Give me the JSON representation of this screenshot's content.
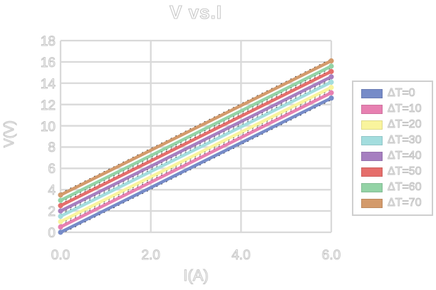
{
  "chart_data": {
    "type": "line",
    "title": "V vs.I",
    "xlabel": "I(A)",
    "ylabel": "V(V)",
    "xlim": [
      0,
      6
    ],
    "ylim": [
      0,
      18
    ],
    "x": [
      0,
      6
    ],
    "grid": true,
    "gridline_color": "#d9d9d9",
    "legend_position": "right",
    "xticks": [
      {
        "value": 0,
        "label": "0.0"
      },
      {
        "value": 2,
        "label": "2.0"
      },
      {
        "value": 4,
        "label": "4.0"
      },
      {
        "value": 6,
        "label": "6.0"
      }
    ],
    "yticks": [
      {
        "value": 0,
        "label": "0"
      },
      {
        "value": 2,
        "label": "2"
      },
      {
        "value": 4,
        "label": "4"
      },
      {
        "value": 6,
        "label": "6"
      },
      {
        "value": 8,
        "label": "8"
      },
      {
        "value": 10,
        "label": "10"
      },
      {
        "value": 12,
        "label": "12"
      },
      {
        "value": 14,
        "label": "14"
      },
      {
        "value": 16,
        "label": "16"
      },
      {
        "value": 18,
        "label": "18"
      }
    ],
    "series": [
      {
        "name": "ΔT=0",
        "color": "#768BC8",
        "values": [
          0.0,
          12.6
        ]
      },
      {
        "name": "ΔT=10",
        "color": "#E780B1",
        "values": [
          0.5,
          13.1
        ]
      },
      {
        "name": "ΔT=20",
        "color": "#F9F49D",
        "values": [
          1.0,
          13.6
        ]
      },
      {
        "name": "ΔT=30",
        "color": "#A3DDDE",
        "values": [
          1.5,
          14.1
        ]
      },
      {
        "name": "ΔT=40",
        "color": "#A67FC0",
        "values": [
          2.0,
          14.6
        ]
      },
      {
        "name": "ΔT=50",
        "color": "#E56E6B",
        "values": [
          2.5,
          15.1
        ]
      },
      {
        "name": "ΔT=60",
        "color": "#93D3A6",
        "values": [
          3.0,
          15.6
        ]
      },
      {
        "name": "ΔT=70",
        "color": "#D39A6B",
        "values": [
          3.5,
          16.1
        ]
      }
    ]
  }
}
